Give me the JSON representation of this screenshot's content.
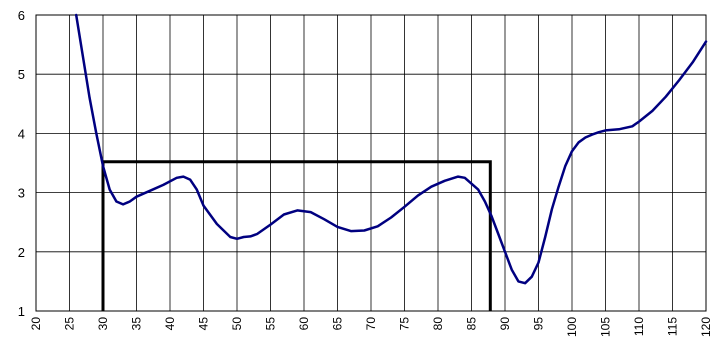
{
  "chart_data": {
    "type": "line",
    "x_ticks": [
      "20",
      "25",
      "30",
      "35",
      "40",
      "45",
      "50",
      "55",
      "60",
      "65",
      "70",
      "75",
      "80",
      "85",
      "90",
      "95",
      "100",
      "105",
      "110",
      "115",
      "120"
    ],
    "y_ticks": [
      "1",
      "2",
      "3",
      "4",
      "5",
      "6"
    ],
    "xlim": [
      20,
      120
    ],
    "ylim": [
      1,
      6
    ],
    "grid": true,
    "colors": {
      "curve": "#000080",
      "bracket": "#000000",
      "grid": "#000000"
    },
    "series": [
      {
        "values": [
          {
            "x": 26,
            "y": 6.0
          },
          {
            "x": 27,
            "y": 5.3
          },
          {
            "x": 28,
            "y": 4.6
          },
          {
            "x": 29,
            "y": 4.0
          },
          {
            "x": 30,
            "y": 3.45
          },
          {
            "x": 31,
            "y": 3.05
          },
          {
            "x": 32,
            "y": 2.85
          },
          {
            "x": 33,
            "y": 2.8
          },
          {
            "x": 34,
            "y": 2.85
          },
          {
            "x": 35,
            "y": 2.93
          },
          {
            "x": 37,
            "y": 3.03
          },
          {
            "x": 39,
            "y": 3.13
          },
          {
            "x": 41,
            "y": 3.25
          },
          {
            "x": 42,
            "y": 3.27
          },
          {
            "x": 43,
            "y": 3.22
          },
          {
            "x": 44,
            "y": 3.05
          },
          {
            "x": 45,
            "y": 2.78
          },
          {
            "x": 47,
            "y": 2.47
          },
          {
            "x": 49,
            "y": 2.25
          },
          {
            "x": 50,
            "y": 2.22
          },
          {
            "x": 51,
            "y": 2.25
          },
          {
            "x": 52,
            "y": 2.26
          },
          {
            "x": 53,
            "y": 2.3
          },
          {
            "x": 55,
            "y": 2.46
          },
          {
            "x": 57,
            "y": 2.63
          },
          {
            "x": 59,
            "y": 2.7
          },
          {
            "x": 61,
            "y": 2.67
          },
          {
            "x": 63,
            "y": 2.55
          },
          {
            "x": 65,
            "y": 2.42
          },
          {
            "x": 67,
            "y": 2.35
          },
          {
            "x": 69,
            "y": 2.36
          },
          {
            "x": 71,
            "y": 2.43
          },
          {
            "x": 73,
            "y": 2.58
          },
          {
            "x": 75,
            "y": 2.76
          },
          {
            "x": 77,
            "y": 2.95
          },
          {
            "x": 79,
            "y": 3.1
          },
          {
            "x": 81,
            "y": 3.2
          },
          {
            "x": 83,
            "y": 3.27
          },
          {
            "x": 84,
            "y": 3.25
          },
          {
            "x": 86,
            "y": 3.05
          },
          {
            "x": 87,
            "y": 2.85
          },
          {
            "x": 88,
            "y": 2.6
          },
          {
            "x": 89,
            "y": 2.3
          },
          {
            "x": 90,
            "y": 2.0
          },
          {
            "x": 91,
            "y": 1.7
          },
          {
            "x": 92,
            "y": 1.5
          },
          {
            "x": 93,
            "y": 1.47
          },
          {
            "x": 94,
            "y": 1.58
          },
          {
            "x": 95,
            "y": 1.82
          },
          {
            "x": 96,
            "y": 2.25
          },
          {
            "x": 97,
            "y": 2.72
          },
          {
            "x": 98,
            "y": 3.1
          },
          {
            "x": 99,
            "y": 3.45
          },
          {
            "x": 100,
            "y": 3.7
          },
          {
            "x": 101,
            "y": 3.85
          },
          {
            "x": 102,
            "y": 3.93
          },
          {
            "x": 103,
            "y": 3.98
          },
          {
            "x": 104,
            "y": 4.02
          },
          {
            "x": 105,
            "y": 4.05
          },
          {
            "x": 107,
            "y": 4.07
          },
          {
            "x": 109,
            "y": 4.12
          },
          {
            "x": 110,
            "y": 4.2
          },
          {
            "x": 112,
            "y": 4.38
          },
          {
            "x": 114,
            "y": 4.62
          },
          {
            "x": 116,
            "y": 4.9
          },
          {
            "x": 118,
            "y": 5.2
          },
          {
            "x": 120,
            "y": 5.55
          }
        ]
      }
    ],
    "bracket": {
      "x_left": 30,
      "x_right": 87.8,
      "y_top": 3.52,
      "y_bottom": 1
    }
  }
}
